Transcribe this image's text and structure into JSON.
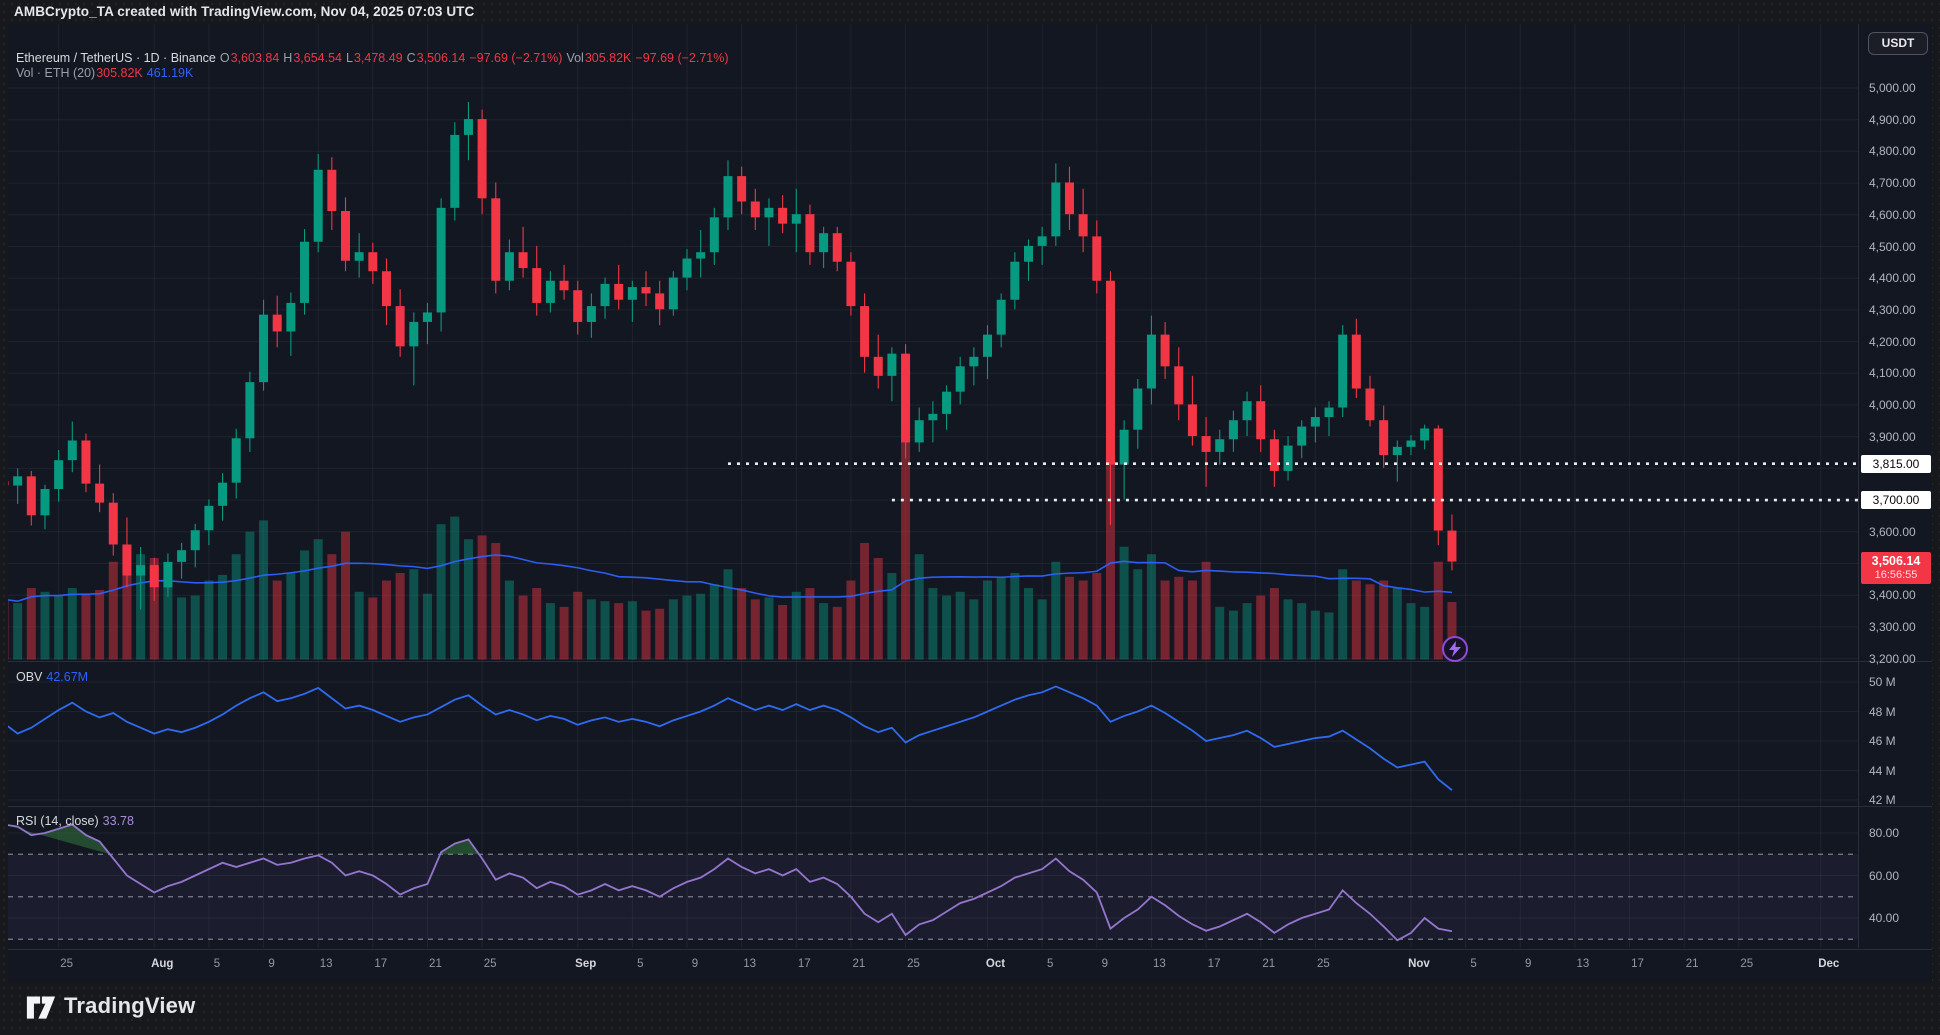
{
  "header": {
    "title": "AMBCrypto_TA created with TradingView.com, Nov 04, 2025 07:03 UTC"
  },
  "toolbar": {
    "currency_button": "USDT"
  },
  "brand": {
    "wordmark": "TradingView"
  },
  "legend": {
    "symbol_row": [
      {
        "t": "Ethereum / TetherUS · 1D · Binance",
        "c": "lg-name"
      },
      {
        "t": "O",
        "c": "lg-lbl"
      },
      {
        "t": "3,603.84",
        "c": "lg-dn"
      },
      {
        "t": "H",
        "c": "lg-lbl"
      },
      {
        "t": "3,654.54",
        "c": "lg-dn"
      },
      {
        "t": "L",
        "c": "lg-lbl"
      },
      {
        "t": "3,478.49",
        "c": "lg-dn"
      },
      {
        "t": "C",
        "c": "lg-lbl"
      },
      {
        "t": "3,506.14",
        "c": "lg-dn"
      },
      {
        "t": "−97.69 (−2.71%)",
        "c": "lg-dn"
      },
      {
        "t": "Vol",
        "c": "lg-lbl"
      },
      {
        "t": "305.82K",
        "c": "lg-dn"
      },
      {
        "t": "−97.69 (−2.71%)",
        "c": "lg-dn"
      }
    ],
    "vol_row": [
      {
        "t": "Vol · ETH (20)",
        "c": "lg-lbl"
      },
      {
        "t": "305.82K",
        "c": "lg-dn"
      },
      {
        "t": "461.19K",
        "c": "lg-blue"
      }
    ],
    "obv_row": [
      {
        "t": "OBV",
        "c": "lg-name"
      },
      {
        "t": "42.67M",
        "c": "lg-blue"
      }
    ],
    "rsi_row": [
      {
        "t": "RSI (14, close)",
        "c": "lg-name"
      },
      {
        "t": "33.78",
        "c": "lg-purp"
      }
    ]
  },
  "colors": {
    "up": "#089981",
    "down": "#f23645",
    "vol_up": "rgba(8,153,129,0.45)",
    "vol_down": "rgba(242,54,69,0.45)",
    "vol_ma": "#2d62ff",
    "obv_line": "#2f6bf0",
    "rsi_line": "#9575cd",
    "rsi_band_fill": "rgba(126,87,194,0.09)",
    "rsi_overbought_fill": "rgba(67,160,71,0.38)",
    "grid": "rgba(170,176,196,0.08)",
    "divider": "#2a2e39",
    "level_dotted": "#eceff2",
    "axis_text": "#b2b5be",
    "last_tag_bg": "#f23645"
  },
  "chart_data": {
    "type": "candlestick",
    "title": "Ethereum / TetherUS · 1D · Binance",
    "panes": [
      "price+volume",
      "OBV",
      "RSI(14)"
    ],
    "x_start_date": "2025-07-21",
    "x_interval": "1 day",
    "ylim_price": [
      3196,
      5104
    ],
    "ylim_obv_m": [
      42,
      50
    ],
    "ylim_rsi": [
      25,
      92
    ],
    "levels": [
      {
        "price": 3815,
        "label": "3,815.00",
        "x_start_index": 53
      },
      {
        "price": 3700,
        "label": "3,700.00",
        "x_start_index": 65
      }
    ],
    "last": {
      "price_label": "3,506.14",
      "countdown": "16:56:55",
      "price": 3506.14
    },
    "price_axis_ticks": [
      {
        "label": "5,000.00",
        "p": 5000
      },
      {
        "label": "4,900.00",
        "p": 4900
      },
      {
        "label": "4,800.00",
        "p": 4800
      },
      {
        "label": "4,700.00",
        "p": 4700
      },
      {
        "label": "4,600.00",
        "p": 4600
      },
      {
        "label": "4,500.00",
        "p": 4500
      },
      {
        "label": "4,400.00",
        "p": 4400
      },
      {
        "label": "4,300.00",
        "p": 4300
      },
      {
        "label": "4,200.00",
        "p": 4200
      },
      {
        "label": "4,100.00",
        "p": 4100
      },
      {
        "label": "4,000.00",
        "p": 4000
      },
      {
        "label": "3,900.00",
        "p": 3900
      },
      {
        "label": "3,600.00",
        "p": 3600
      },
      {
        "label": "3,400.00",
        "p": 3400
      },
      {
        "label": "3,300.00",
        "p": 3300
      },
      {
        "label": "3,200.00",
        "p": 3200
      }
    ],
    "obv_axis_ticks": [
      {
        "label": "50 M",
        "v": 50
      },
      {
        "label": "48 M",
        "v": 48
      },
      {
        "label": "46 M",
        "v": 46
      },
      {
        "label": "44 M",
        "v": 44
      },
      {
        "label": "42 M",
        "v": 42
      }
    ],
    "rsi_axis_ticks": [
      {
        "label": "80.00",
        "r": 80
      },
      {
        "label": "60.00",
        "r": 60
      },
      {
        "label": "40.00",
        "r": 40
      }
    ],
    "rsi_bands": [
      70,
      50,
      30
    ],
    "time_ticks": [
      {
        "label": "25",
        "i": 4
      },
      {
        "label": "Aug",
        "i": 11,
        "month": true
      },
      {
        "label": "5",
        "i": 15
      },
      {
        "label": "9",
        "i": 19
      },
      {
        "label": "13",
        "i": 23
      },
      {
        "label": "17",
        "i": 27
      },
      {
        "label": "21",
        "i": 31
      },
      {
        "label": "25",
        "i": 35
      },
      {
        "label": "Sep",
        "i": 42,
        "month": true
      },
      {
        "label": "5",
        "i": 46
      },
      {
        "label": "9",
        "i": 50
      },
      {
        "label": "13",
        "i": 54
      },
      {
        "label": "17",
        "i": 58
      },
      {
        "label": "21",
        "i": 62
      },
      {
        "label": "25",
        "i": 66
      },
      {
        "label": "Oct",
        "i": 72,
        "month": true
      },
      {
        "label": "5",
        "i": 76
      },
      {
        "label": "9",
        "i": 80
      },
      {
        "label": "13",
        "i": 84
      },
      {
        "label": "17",
        "i": 88
      },
      {
        "label": "21",
        "i": 92
      },
      {
        "label": "25",
        "i": 96
      },
      {
        "label": "Nov",
        "i": 103,
        "month": true
      },
      {
        "label": "5",
        "i": 107
      },
      {
        "label": "9",
        "i": 111
      },
      {
        "label": "13",
        "i": 115
      },
      {
        "label": "17",
        "i": 119
      },
      {
        "label": "21",
        "i": 123
      },
      {
        "label": "25",
        "i": 127
      },
      {
        "label": "Dec",
        "i": 133,
        "month": true
      }
    ],
    "ohlcv": [
      [
        3760,
        3815,
        3700,
        3746,
        320
      ],
      [
        3746,
        3800,
        3688,
        3775,
        300
      ],
      [
        3775,
        3792,
        3620,
        3652,
        380
      ],
      [
        3652,
        3748,
        3608,
        3735,
        360
      ],
      [
        3735,
        3858,
        3695,
        3826,
        340
      ],
      [
        3826,
        3948,
        3788,
        3888,
        380
      ],
      [
        3888,
        3910,
        3725,
        3752,
        350
      ],
      [
        3752,
        3812,
        3662,
        3692,
        370
      ],
      [
        3692,
        3722,
        3525,
        3560,
        520
      ],
      [
        3560,
        3645,
        3425,
        3462,
        600
      ],
      [
        3462,
        3552,
        3355,
        3495,
        560
      ],
      [
        3495,
        3518,
        3382,
        3425,
        540
      ],
      [
        3425,
        3532,
        3395,
        3505,
        430
      ],
      [
        3505,
        3565,
        3452,
        3542,
        330
      ],
      [
        3542,
        3625,
        3488,
        3605,
        340
      ],
      [
        3605,
        3702,
        3558,
        3682,
        420
      ],
      [
        3682,
        3785,
        3635,
        3755,
        450
      ],
      [
        3755,
        3925,
        3705,
        3895,
        560
      ],
      [
        3895,
        4105,
        3852,
        4072,
        680
      ],
      [
        4072,
        4332,
        4045,
        4285,
        740
      ],
      [
        4285,
        4345,
        4182,
        4232,
        420
      ],
      [
        4232,
        4355,
        4155,
        4322,
        460
      ],
      [
        4322,
        4555,
        4285,
        4515,
        580
      ],
      [
        4515,
        4792,
        4482,
        4742,
        640
      ],
      [
        4742,
        4782,
        4552,
        4612,
        560
      ],
      [
        4612,
        4655,
        4422,
        4455,
        680
      ],
      [
        4455,
        4542,
        4402,
        4482,
        360
      ],
      [
        4482,
        4512,
        4382,
        4422,
        330
      ],
      [
        4422,
        4462,
        4252,
        4312,
        420
      ],
      [
        4312,
        4365,
        4152,
        4185,
        460
      ],
      [
        4185,
        4292,
        4062,
        4262,
        480
      ],
      [
        4262,
        4322,
        4192,
        4292,
        350
      ],
      [
        4292,
        4652,
        4232,
        4622,
        720
      ],
      [
        4622,
        4892,
        4582,
        4852,
        760
      ],
      [
        4852,
        4956,
        4772,
        4902,
        640
      ],
      [
        4902,
        4932,
        4602,
        4652,
        660
      ],
      [
        4652,
        4702,
        4352,
        4392,
        620
      ],
      [
        4392,
        4522,
        4362,
        4482,
        420
      ],
      [
        4482,
        4562,
        4402,
        4432,
        340
      ],
      [
        4432,
        4502,
        4282,
        4322,
        380
      ],
      [
        4322,
        4422,
        4292,
        4392,
        300
      ],
      [
        4392,
        4442,
        4332,
        4362,
        280
      ],
      [
        4362,
        4392,
        4222,
        4262,
        360
      ],
      [
        4262,
        4352,
        4212,
        4312,
        320
      ],
      [
        4312,
        4402,
        4272,
        4382,
        310
      ],
      [
        4382,
        4442,
        4302,
        4332,
        300
      ],
      [
        4332,
        4392,
        4262,
        4372,
        310
      ],
      [
        4372,
        4422,
        4312,
        4352,
        260
      ],
      [
        4352,
        4392,
        4252,
        4302,
        270
      ],
      [
        4302,
        4422,
        4282,
        4402,
        320
      ],
      [
        4402,
        4492,
        4362,
        4462,
        340
      ],
      [
        4462,
        4552,
        4402,
        4482,
        350
      ],
      [
        4482,
        4622,
        4442,
        4592,
        400
      ],
      [
        4592,
        4772,
        4552,
        4722,
        480
      ],
      [
        4722,
        4752,
        4602,
        4642,
        380
      ],
      [
        4642,
        4682,
        4552,
        4592,
        320
      ],
      [
        4592,
        4652,
        4502,
        4622,
        330
      ],
      [
        4622,
        4662,
        4542,
        4572,
        290
      ],
      [
        4572,
        4682,
        4482,
        4602,
        360
      ],
      [
        4602,
        4632,
        4442,
        4482,
        380
      ],
      [
        4482,
        4562,
        4432,
        4542,
        300
      ],
      [
        4542,
        4562,
        4422,
        4452,
        280
      ],
      [
        4452,
        4482,
        4282,
        4312,
        420
      ],
      [
        4312,
        4352,
        4102,
        4152,
        620
      ],
      [
        4152,
        4222,
        4052,
        4092,
        540
      ],
      [
        4092,
        4182,
        4012,
        4162,
        460
      ],
      [
        4162,
        4192,
        3832,
        3882,
        1250
      ],
      [
        3882,
        3992,
        3852,
        3952,
        560
      ],
      [
        3952,
        4012,
        3882,
        3972,
        380
      ],
      [
        3972,
        4062,
        3922,
        4042,
        340
      ],
      [
        4042,
        4152,
        4002,
        4122,
        360
      ],
      [
        4122,
        4182,
        4062,
        4152,
        320
      ],
      [
        4152,
        4252,
        4082,
        4222,
        420
      ],
      [
        4222,
        4352,
        4182,
        4332,
        440
      ],
      [
        4332,
        4482,
        4302,
        4452,
        460
      ],
      [
        4452,
        4522,
        4392,
        4502,
        380
      ],
      [
        4502,
        4562,
        4442,
        4532,
        320
      ],
      [
        4532,
        4762,
        4502,
        4702,
        520
      ],
      [
        4702,
        4752,
        4552,
        4602,
        440
      ],
      [
        4602,
        4682,
        4482,
        4532,
        420
      ],
      [
        4532,
        4582,
        4352,
        4392,
        460
      ],
      [
        4392,
        4422,
        3622,
        3812,
        1150
      ],
      [
        3812,
        3952,
        3702,
        3922,
        600
      ],
      [
        3922,
        4082,
        3862,
        4052,
        480
      ],
      [
        4052,
        4282,
        4002,
        4222,
        560
      ],
      [
        4222,
        4262,
        4082,
        4122,
        420
      ],
      [
        4122,
        4182,
        3952,
        4002,
        440
      ],
      [
        4002,
        4092,
        3872,
        3902,
        420
      ],
      [
        3902,
        3962,
        3742,
        3852,
        520
      ],
      [
        3852,
        3922,
        3812,
        3892,
        280
      ],
      [
        3892,
        3982,
        3852,
        3952,
        260
      ],
      [
        3952,
        4042,
        3902,
        4012,
        300
      ],
      [
        4012,
        4062,
        3852,
        3892,
        340
      ],
      [
        3892,
        3922,
        3742,
        3792,
        380
      ],
      [
        3792,
        3902,
        3762,
        3872,
        320
      ],
      [
        3872,
        3952,
        3832,
        3932,
        300
      ],
      [
        3932,
        3992,
        3882,
        3962,
        260
      ],
      [
        3962,
        4012,
        3902,
        3992,
        250
      ],
      [
        3992,
        4252,
        3962,
        4222,
        480
      ],
      [
        4222,
        4272,
        4022,
        4052,
        420
      ],
      [
        4052,
        4092,
        3932,
        3952,
        400
      ],
      [
        3952,
        3998,
        3802,
        3842,
        420
      ],
      [
        3842,
        3888,
        3758,
        3868,
        380
      ],
      [
        3868,
        3905,
        3842,
        3888,
        300
      ],
      [
        3888,
        3938,
        3860,
        3926,
        280
      ],
      [
        3926,
        3936,
        3558,
        3604,
        520
      ],
      [
        3603.84,
        3654.54,
        3478.49,
        3506.14,
        305.82
      ]
    ],
    "obv_m": [
      47.2,
      46.5,
      46.9,
      47.5,
      48.1,
      48.6,
      48.0,
      47.6,
      47.9,
      47.3,
      46.9,
      46.5,
      46.8,
      46.6,
      46.9,
      47.3,
      47.8,
      48.4,
      48.9,
      49.3,
      48.7,
      48.9,
      49.2,
      49.6,
      48.9,
      48.2,
      48.4,
      48.1,
      47.7,
      47.3,
      47.6,
      47.8,
      48.3,
      48.8,
      49.1,
      48.4,
      47.8,
      48.1,
      47.8,
      47.4,
      47.7,
      47.5,
      47.1,
      47.4,
      47.6,
      47.3,
      47.5,
      47.3,
      47.0,
      47.4,
      47.7,
      48.0,
      48.4,
      48.9,
      48.5,
      48.1,
      48.4,
      48.1,
      48.5,
      48.1,
      48.4,
      48.1,
      47.6,
      47.0,
      46.6,
      46.9,
      45.9,
      46.4,
      46.7,
      47.0,
      47.3,
      47.6,
      48.0,
      48.4,
      48.8,
      49.1,
      49.3,
      49.7,
      49.3,
      48.9,
      48.4,
      47.3,
      47.7,
      48.0,
      48.4,
      47.9,
      47.3,
      46.7,
      46.0,
      46.2,
      46.4,
      46.7,
      46.2,
      45.6,
      45.8,
      46.0,
      46.2,
      46.3,
      46.7,
      46.1,
      45.5,
      44.8,
      44.2,
      44.4,
      44.6,
      43.4,
      42.67
    ],
    "rsi": [
      84,
      83,
      79,
      80,
      82,
      84,
      79,
      76,
      68,
      60,
      56,
      52,
      55,
      57,
      60,
      63,
      66,
      64,
      66,
      68,
      65,
      66,
      68,
      69.5,
      66,
      60,
      62,
      60,
      56,
      51,
      54,
      56,
      71,
      75,
      77,
      68,
      58,
      61,
      59,
      54,
      57,
      55,
      51,
      53,
      56,
      53,
      55,
      53,
      50,
      54,
      57,
      59,
      63,
      68,
      64,
      61,
      63,
      60,
      63,
      57,
      59,
      56,
      50,
      42,
      38,
      42,
      32,
      37,
      39,
      43,
      47,
      49,
      52,
      55,
      59,
      61,
      63,
      68,
      62,
      58,
      52,
      35,
      40,
      44,
      50,
      46,
      41,
      37,
      34,
      36,
      39,
      42,
      38,
      33,
      37,
      40,
      42,
      44,
      53,
      47,
      42,
      36,
      29.5,
      33,
      40,
      35,
      33.78
    ]
  }
}
